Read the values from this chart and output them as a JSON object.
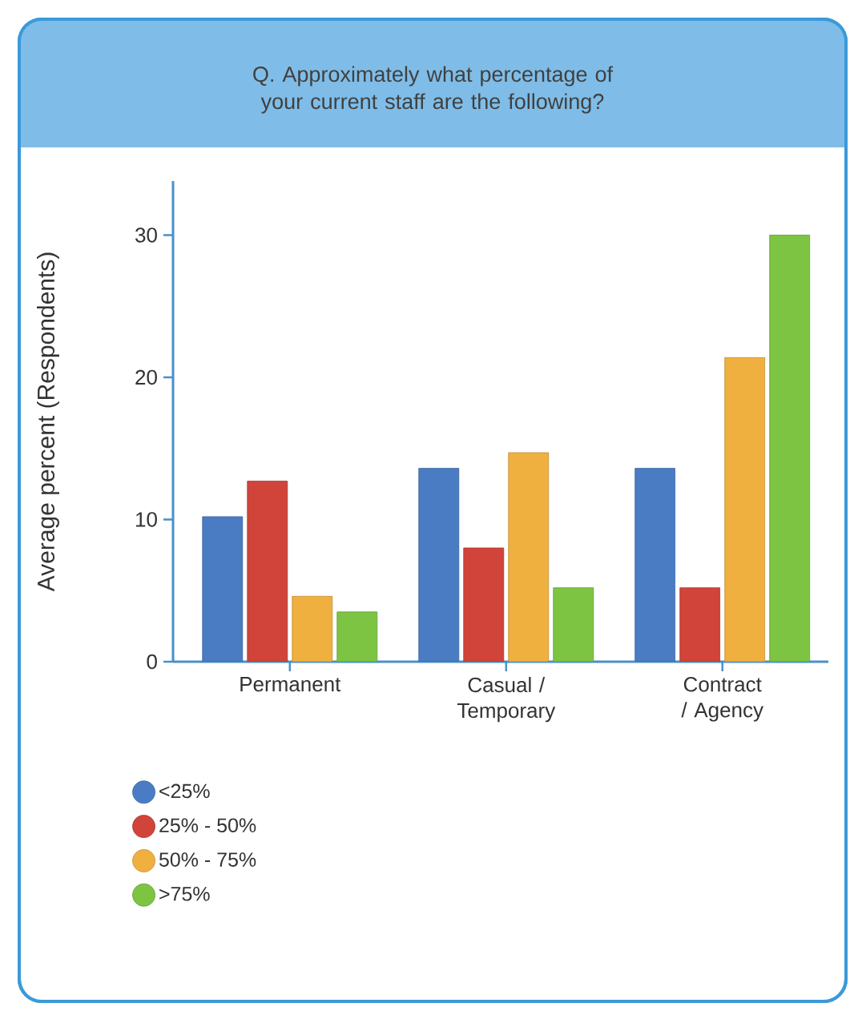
{
  "chart_data": {
    "type": "bar",
    "title": "Q. Approximately what percentage of your current staff are the following?",
    "ylabel": "Average percent (Respondents)",
    "categories": [
      "Permanent",
      "Casual / Temporary",
      "Contract / Agency"
    ],
    "series": [
      {
        "name": "<25%",
        "color": "#4a7cc4",
        "values": [
          10.2,
          13.6,
          13.6
        ]
      },
      {
        "name": "25% - 50%",
        "color": "#d0443a",
        "values": [
          12.7,
          8.0,
          5.2
        ]
      },
      {
        "name": "50% - 75%",
        "color": "#f0b040",
        "values": [
          4.6,
          14.7,
          21.4
        ]
      },
      {
        "name": ">75%",
        "color": "#7cc442",
        "values": [
          3.5,
          5.2,
          30
        ]
      }
    ],
    "ylim": [
      0,
      33.8
    ],
    "yticks": [
      0,
      10,
      20,
      30
    ],
    "grid": false,
    "legend": "bottom"
  }
}
